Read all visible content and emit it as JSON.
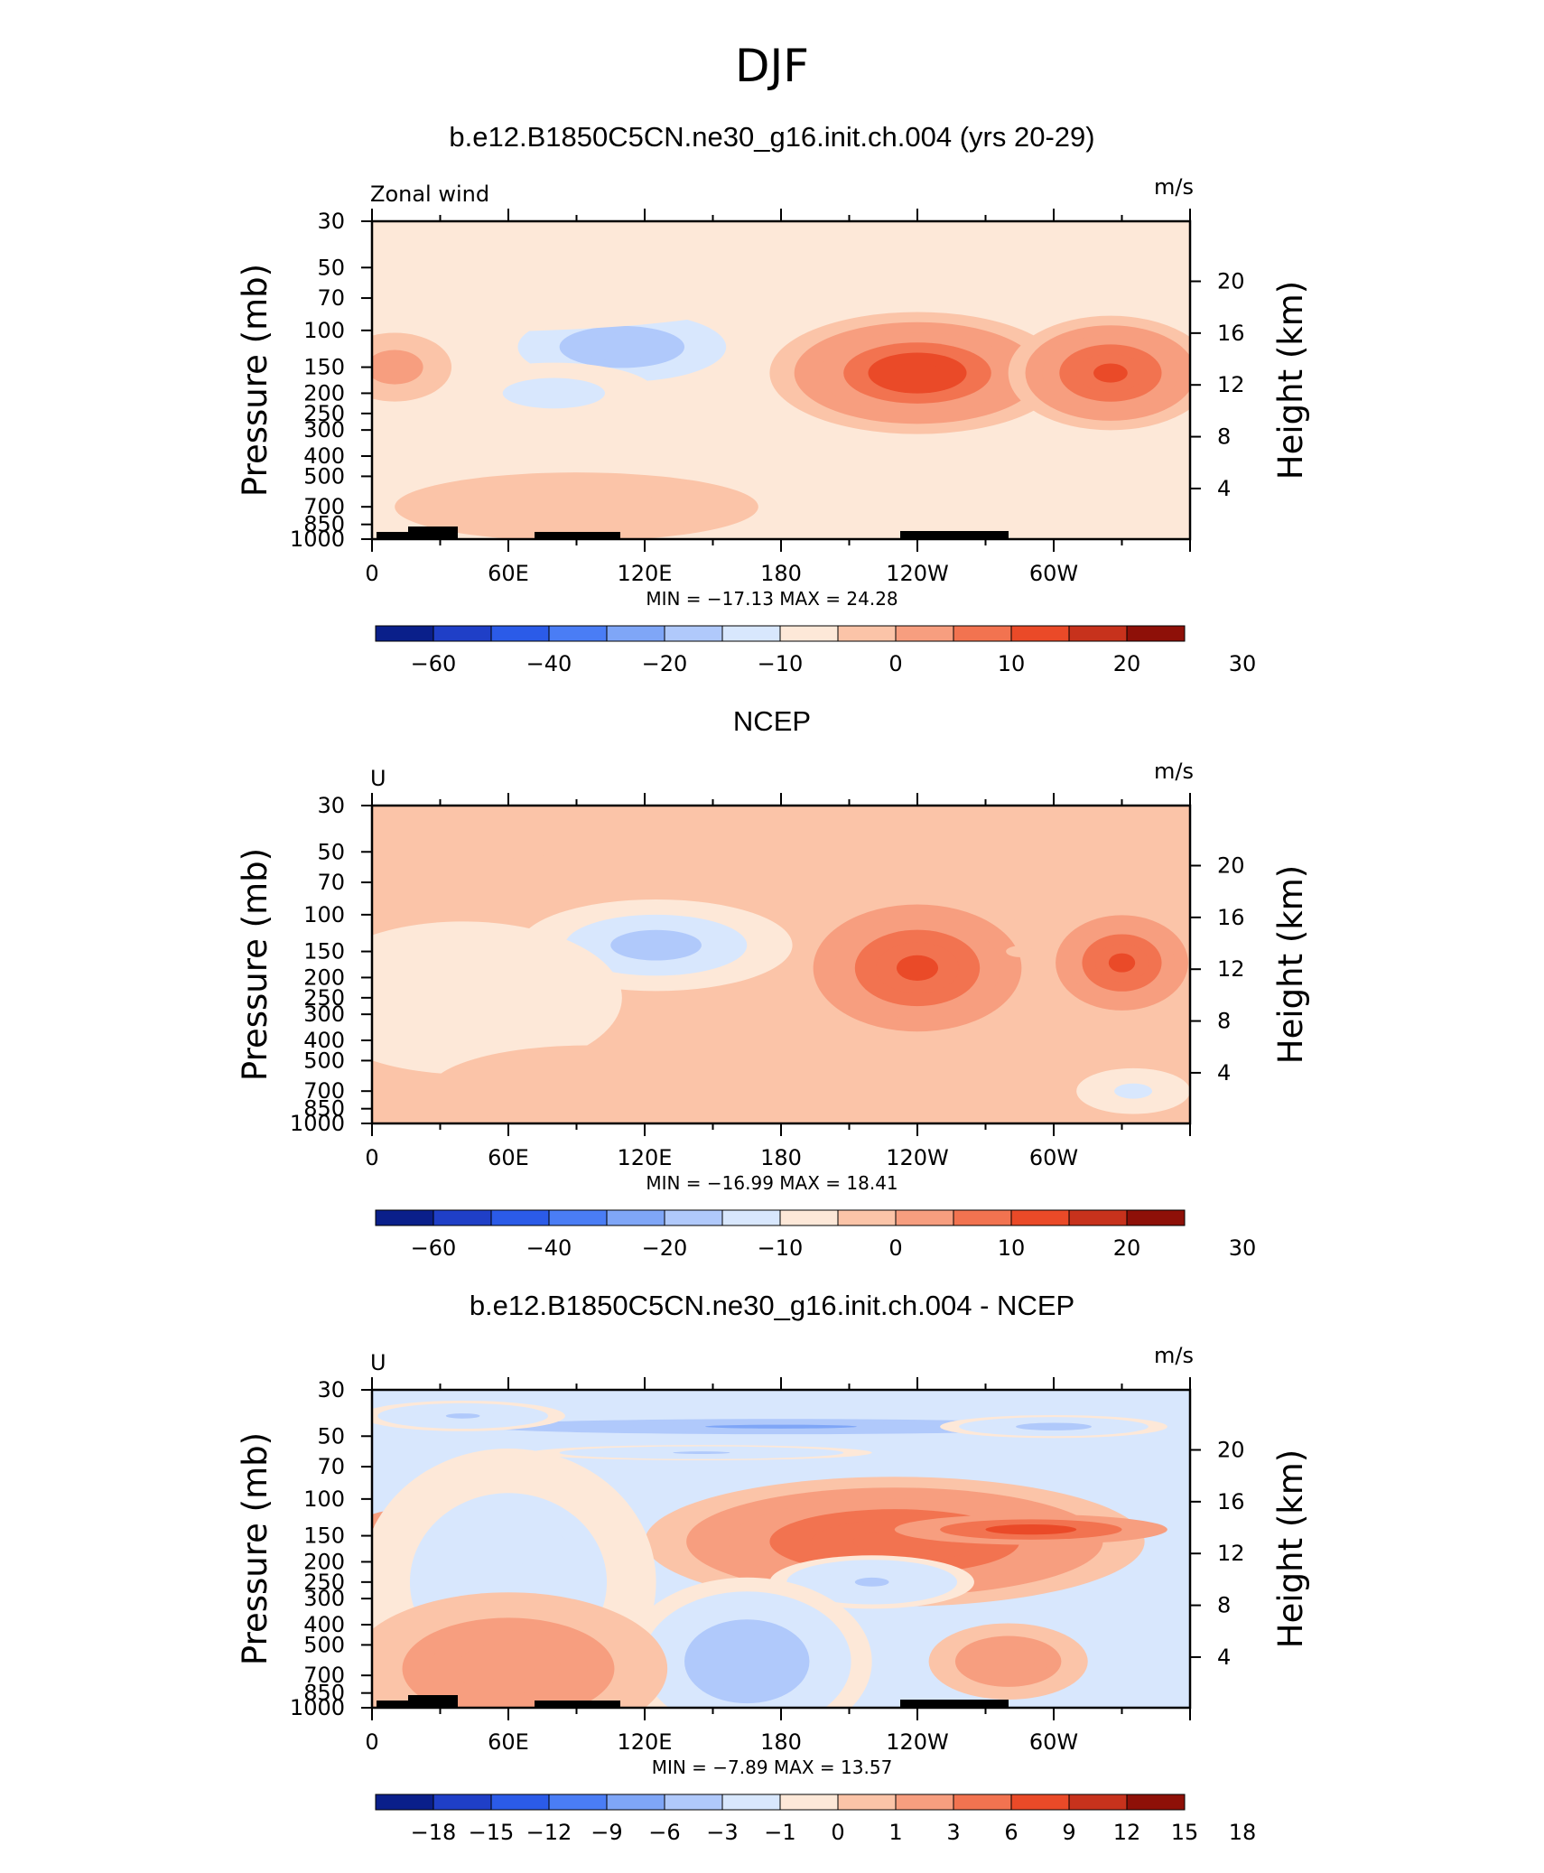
{
  "title": "DJF",
  "chart_data": [
    {
      "type": "heatmap",
      "title": "b.e12.B1850C5CN.ne30_g16.init.ch.004 (yrs 20-29)",
      "left_label": "Zonal wind",
      "units": "m/s",
      "ylabel": "Pressure (mb)",
      "ylabel_right": "Height (km)",
      "pressure_ticks": [
        "30",
        "50",
        "70",
        "100",
        "150",
        "200",
        "250",
        "300",
        "400",
        "500",
        "700",
        "850",
        "1000"
      ],
      "height_ticks": [
        "20",
        "16",
        "12",
        "8",
        "4"
      ],
      "x_ticks": [
        "0",
        "60E",
        "120E",
        "180",
        "120W",
        "60W"
      ],
      "stats": "MIN = −17.13   MAX =   24.28",
      "colorbar_labels": [
        "−60",
        "−40",
        "−20",
        "−10",
        "0",
        "10",
        "20",
        "30"
      ],
      "colorbar_colors": [
        "#0a1f8a",
        "#1f3fc7",
        "#2b5be8",
        "#4a7df5",
        "#7fa6f7",
        "#b0c9fb",
        "#d8e7fd",
        "#fde8d8",
        "#fbc4a8",
        "#f79e7f",
        "#f27350",
        "#ea4a28",
        "#c7321c",
        "#8e1008"
      ],
      "blobs": [
        {
          "lon": 10,
          "p": 150,
          "v": 8,
          "rx": 25,
          "ry": 90
        },
        {
          "lon": 110,
          "p": 120,
          "v": -15,
          "rx": 55,
          "ry": 110
        },
        {
          "lon": 80,
          "p": 200,
          "v": -8,
          "rx": 45,
          "ry": 80
        },
        {
          "lon": 240,
          "p": 160,
          "v": 20,
          "rx": 65,
          "ry": 160
        },
        {
          "lon": 325,
          "p": 160,
          "v": 17,
          "rx": 45,
          "ry": 150
        },
        {
          "lon": 90,
          "p": 700,
          "v": 4,
          "rx": 80,
          "ry": 90
        },
        {
          "lon": 210,
          "p": 850,
          "v": -4,
          "rx": 40,
          "ry": 30
        },
        {
          "lon": 30,
          "p": 70,
          "v": -1.5,
          "rx": 140,
          "ry": 90
        }
      ]
    },
    {
      "type": "heatmap",
      "title": "NCEP",
      "left_label": "U",
      "units": "m/s",
      "ylabel": "Pressure (mb)",
      "ylabel_right": "Height (km)",
      "pressure_ticks": [
        "30",
        "50",
        "70",
        "100",
        "150",
        "200",
        "250",
        "300",
        "400",
        "500",
        "700",
        "850",
        "1000"
      ],
      "height_ticks": [
        "20",
        "16",
        "12",
        "8",
        "4"
      ],
      "x_ticks": [
        "0",
        "60E",
        "120E",
        "180",
        "120W",
        "60W"
      ],
      "stats": "MIN = −16.99   MAX =   18.41",
      "colorbar_labels": [
        "−60",
        "−40",
        "−20",
        "−10",
        "0",
        "10",
        "20",
        "30"
      ],
      "colorbar_colors": [
        "#0a1f8a",
        "#1f3fc7",
        "#2b5be8",
        "#4a7df5",
        "#7fa6f7",
        "#b0c9fb",
        "#d8e7fd",
        "#fde8d8",
        "#fbc4a8",
        "#f79e7f",
        "#f27350",
        "#ea4a28",
        "#c7321c",
        "#8e1008"
      ],
      "blobs": [
        {
          "lon": 125,
          "p": 140,
          "v": -14,
          "rx": 60,
          "ry": 120
        },
        {
          "lon": 40,
          "p": 250,
          "v": -4,
          "rx": 70,
          "ry": 200
        },
        {
          "lon": 240,
          "p": 180,
          "v": 17,
          "rx": 55,
          "ry": 200
        },
        {
          "lon": 330,
          "p": 170,
          "v": 16,
          "rx": 35,
          "ry": 150
        },
        {
          "lon": 40,
          "p": 50,
          "v": 3,
          "rx": 40,
          "ry": 20
        },
        {
          "lon": 100,
          "p": 55,
          "v": 3,
          "rx": 40,
          "ry": 15
        },
        {
          "lon": 95,
          "p": 700,
          "v": 3,
          "rx": 70,
          "ry": 120
        },
        {
          "lon": 335,
          "p": 700,
          "v": -6,
          "rx": 25,
          "ry": 60
        },
        {
          "lon": 285,
          "p": 150,
          "v": 0.5,
          "rx": 6,
          "ry": 15
        }
      ]
    },
    {
      "type": "heatmap",
      "title": "b.e12.B1850C5CN.ne30_g16.init.ch.004 - NCEP",
      "left_label": "U",
      "units": "m/s",
      "ylabel": "Pressure (mb)",
      "ylabel_right": "Height (km)",
      "pressure_ticks": [
        "30",
        "50",
        "70",
        "100",
        "150",
        "200",
        "250",
        "300",
        "400",
        "500",
        "700",
        "850",
        "1000"
      ],
      "height_ticks": [
        "20",
        "16",
        "12",
        "8",
        "4"
      ],
      "x_ticks": [
        "0",
        "60E",
        "120E",
        "180",
        "120W",
        "60W"
      ],
      "stats": "MIN =   −7.89   MAX =   13.57",
      "colorbar_labels": [
        "−18",
        "−15",
        "−12",
        "−9",
        "−6",
        "−3",
        "−1",
        "0",
        "1",
        "3",
        "6",
        "9",
        "12",
        "15",
        "18"
      ],
      "colorbar_colors": [
        "#0a1f8a",
        "#1f3fc7",
        "#2b5be8",
        "#4a7df5",
        "#7fa6f7",
        "#b0c9fb",
        "#d8e7fd",
        "#fde8d8",
        "#fbc4a8",
        "#f79e7f",
        "#f27350",
        "#ea4a28",
        "#c7321c",
        "#8e1008"
      ],
      "blobs": [
        {
          "lon": 180,
          "p": 45,
          "v": -6,
          "rx": 200,
          "ry": 30
        },
        {
          "lon": 40,
          "p": 40,
          "v": -3,
          "rx": 45,
          "ry": 40
        },
        {
          "lon": 300,
          "p": 45,
          "v": -4,
          "rx": 50,
          "ry": 30
        },
        {
          "lon": 145,
          "p": 60,
          "v": -3,
          "rx": 75,
          "ry": 20
        },
        {
          "lon": 230,
          "p": 160,
          "v": 6,
          "rx": 110,
          "ry": 170
        },
        {
          "lon": 290,
          "p": 140,
          "v": 9,
          "rx": 60,
          "ry": 40
        },
        {
          "lon": 15,
          "p": 150,
          "v": 7,
          "rx": 25,
          "ry": 70
        },
        {
          "lon": 60,
          "p": 250,
          "v": -2,
          "rx": 65,
          "ry": 350
        },
        {
          "lon": 220,
          "p": 250,
          "v": -3,
          "rx": 45,
          "ry": 70
        },
        {
          "lon": 165,
          "p": 600,
          "v": -5,
          "rx": 55,
          "ry": 220
        },
        {
          "lon": 60,
          "p": 650,
          "v": 3,
          "rx": 70,
          "ry": 200
        },
        {
          "lon": 280,
          "p": 600,
          "v": 3,
          "rx": 35,
          "ry": 100
        }
      ]
    }
  ]
}
